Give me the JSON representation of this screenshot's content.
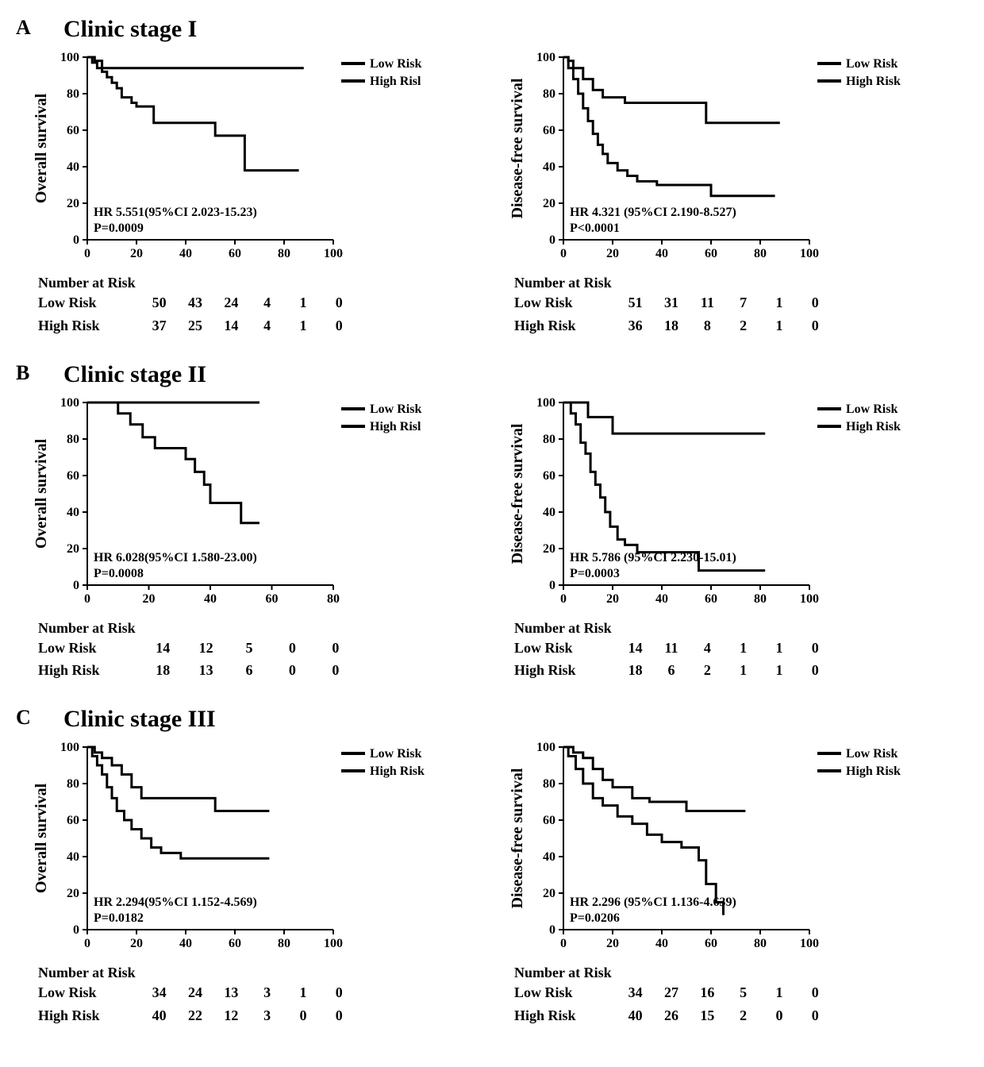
{
  "colors": {
    "line": "#000000",
    "axis": "#000000",
    "text": "#000000",
    "bg": "#ffffff"
  },
  "legend": {
    "low": "Low Risk",
    "high": "High Risk",
    "high_typo": "High Risl"
  },
  "nar_label": "Number at Risk",
  "panels": [
    {
      "letter": "A",
      "title": "Clinic stage I",
      "charts": [
        {
          "ylabel": "Overall survival",
          "xmax": 100,
          "xtick_step": 20,
          "ylim": [
            0,
            100
          ],
          "ytick_step": 20,
          "line_width": 3,
          "hr_text": "HR 5.551(95%CI 2.023-15.23)",
          "p_text": "P=0.0009",
          "legend_high": "High Risl",
          "low_curve": [
            [
              0,
              100
            ],
            [
              3,
              98
            ],
            [
              6,
              94
            ],
            [
              88,
              94
            ]
          ],
          "high_curve": [
            [
              0,
              100
            ],
            [
              2,
              97
            ],
            [
              4,
              94
            ],
            [
              6,
              92
            ],
            [
              8,
              89
            ],
            [
              10,
              86
            ],
            [
              12,
              83
            ],
            [
              14,
              78
            ],
            [
              18,
              75
            ],
            [
              20,
              73
            ],
            [
              25,
              73
            ],
            [
              27,
              64
            ],
            [
              50,
              64
            ],
            [
              52,
              57
            ],
            [
              62,
              57
            ],
            [
              64,
              38
            ],
            [
              86,
              38
            ]
          ],
          "nar_low_label": "Low Risk",
          "nar_high_label": "High Risk",
          "nar_low": [
            50,
            43,
            24,
            4,
            1,
            0
          ],
          "nar_high": [
            37,
            25,
            14,
            4,
            1,
            0
          ]
        },
        {
          "ylabel": "Disease-free survival",
          "xmax": 100,
          "xtick_step": 20,
          "ylim": [
            0,
            100
          ],
          "ytick_step": 20,
          "line_width": 3,
          "hr_text": "HR 4.321 (95%CI 2.190-8.527)",
          "p_text": "P<0.0001",
          "legend_high": "High Risk",
          "low_curve": [
            [
              0,
              100
            ],
            [
              2,
              98
            ],
            [
              4,
              94
            ],
            [
              8,
              88
            ],
            [
              12,
              82
            ],
            [
              16,
              78
            ],
            [
              25,
              75
            ],
            [
              55,
              75
            ],
            [
              58,
              64
            ],
            [
              88,
              64
            ]
          ],
          "high_curve": [
            [
              0,
              100
            ],
            [
              2,
              94
            ],
            [
              4,
              88
            ],
            [
              6,
              80
            ],
            [
              8,
              72
            ],
            [
              10,
              65
            ],
            [
              12,
              58
            ],
            [
              14,
              52
            ],
            [
              16,
              47
            ],
            [
              18,
              42
            ],
            [
              22,
              38
            ],
            [
              26,
              35
            ],
            [
              30,
              32
            ],
            [
              38,
              30
            ],
            [
              58,
              30
            ],
            [
              60,
              24
            ],
            [
              86,
              24
            ]
          ],
          "nar_low_label": "Low Risk",
          "nar_high_label": "High Risk",
          "nar_low": [
            51,
            31,
            11,
            7,
            1,
            0
          ],
          "nar_high": [
            36,
            18,
            8,
            2,
            1,
            0
          ]
        }
      ]
    },
    {
      "letter": "B",
      "title": "Clinic stage II",
      "charts": [
        {
          "ylabel": "Overall survival",
          "xmax": 80,
          "xtick_step": 20,
          "ylim": [
            0,
            100
          ],
          "ytick_step": 20,
          "line_width": 3,
          "hr_text": "HR 6.028(95%CI 1.580-23.00)",
          "p_text": "P=0.0008",
          "legend_high": "High Risl",
          "low_curve": [
            [
              0,
              100
            ],
            [
              56,
              100
            ]
          ],
          "high_curve": [
            [
              0,
              100
            ],
            [
              8,
              100
            ],
            [
              10,
              94
            ],
            [
              14,
              88
            ],
            [
              18,
              81
            ],
            [
              22,
              75
            ],
            [
              30,
              75
            ],
            [
              32,
              69
            ],
            [
              35,
              62
            ],
            [
              38,
              55
            ],
            [
              40,
              45
            ],
            [
              48,
              45
            ],
            [
              50,
              34
            ],
            [
              56,
              34
            ]
          ],
          "nar_low_label": "Low Risk",
          "nar_high_label": "High Risk",
          "nar_low": [
            14,
            12,
            5,
            0,
            0
          ],
          "nar_high": [
            18,
            13,
            6,
            0,
            0
          ]
        },
        {
          "ylabel": "Disease-free survival",
          "xmax": 100,
          "xtick_step": 20,
          "ylim": [
            0,
            100
          ],
          "ytick_step": 20,
          "line_width": 3,
          "hr_text": "HR 5.786 (95%CI 2.230-15.01)",
          "p_text": "P=0.0003",
          "legend_high": "High Risk",
          "low_curve": [
            [
              0,
              100
            ],
            [
              8,
              100
            ],
            [
              10,
              92
            ],
            [
              18,
              92
            ],
            [
              20,
              83
            ],
            [
              82,
              83
            ]
          ],
          "high_curve": [
            [
              0,
              100
            ],
            [
              3,
              94
            ],
            [
              5,
              88
            ],
            [
              7,
              78
            ],
            [
              9,
              72
            ],
            [
              11,
              62
            ],
            [
              13,
              55
            ],
            [
              15,
              48
            ],
            [
              17,
              40
            ],
            [
              19,
              32
            ],
            [
              22,
              25
            ],
            [
              25,
              22
            ],
            [
              30,
              18
            ],
            [
              52,
              18
            ],
            [
              55,
              8
            ],
            [
              82,
              8
            ]
          ],
          "nar_low_label": "Low Risk",
          "nar_high_label": "High Risk",
          "nar_low": [
            14,
            11,
            4,
            1,
            1,
            0
          ],
          "nar_high": [
            18,
            6,
            2,
            1,
            1,
            0
          ]
        }
      ]
    },
    {
      "letter": "C",
      "title": "Clinic stage III",
      "charts": [
        {
          "ylabel": "Overall survival",
          "xmax": 100,
          "xtick_step": 20,
          "ylim": [
            0,
            100
          ],
          "ytick_step": 20,
          "line_width": 3,
          "hr_text": "HR 2.294(95%CI 1.152-4.569)",
          "p_text": "P=0.0182",
          "legend_high": "High Risk",
          "low_curve": [
            [
              0,
              100
            ],
            [
              3,
              97
            ],
            [
              6,
              94
            ],
            [
              10,
              90
            ],
            [
              14,
              85
            ],
            [
              18,
              78
            ],
            [
              22,
              72
            ],
            [
              50,
              72
            ],
            [
              52,
              65
            ],
            [
              74,
              65
            ]
          ],
          "high_curve": [
            [
              0,
              100
            ],
            [
              2,
              95
            ],
            [
              4,
              90
            ],
            [
              6,
              85
            ],
            [
              8,
              78
            ],
            [
              10,
              72
            ],
            [
              12,
              65
            ],
            [
              15,
              60
            ],
            [
              18,
              55
            ],
            [
              22,
              50
            ],
            [
              26,
              45
            ],
            [
              30,
              42
            ],
            [
              38,
              39
            ],
            [
              74,
              39
            ]
          ],
          "nar_low_label": "Low Risk",
          "nar_high_label": "High Risk",
          "nar_low": [
            34,
            24,
            13,
            3,
            1,
            0
          ],
          "nar_high": [
            40,
            22,
            12,
            3,
            0,
            0
          ]
        },
        {
          "ylabel": "Disease-free survival",
          "xmax": 100,
          "xtick_step": 20,
          "ylim": [
            0,
            100
          ],
          "ytick_step": 20,
          "line_width": 3,
          "hr_text": "HR 2.296 (95%CI 1.136-4.639)",
          "p_text": "P=0.0206",
          "legend_high": "High Risk",
          "low_curve": [
            [
              0,
              100
            ],
            [
              4,
              97
            ],
            [
              8,
              94
            ],
            [
              12,
              88
            ],
            [
              16,
              82
            ],
            [
              20,
              78
            ],
            [
              28,
              72
            ],
            [
              35,
              70
            ],
            [
              48,
              70
            ],
            [
              50,
              65
            ],
            [
              74,
              65
            ]
          ],
          "high_curve": [
            [
              0,
              100
            ],
            [
              2,
              95
            ],
            [
              5,
              88
            ],
            [
              8,
              80
            ],
            [
              12,
              72
            ],
            [
              16,
              68
            ],
            [
              22,
              62
            ],
            [
              28,
              58
            ],
            [
              34,
              52
            ],
            [
              40,
              48
            ],
            [
              48,
              45
            ],
            [
              55,
              38
            ],
            [
              58,
              25
            ],
            [
              62,
              15
            ],
            [
              65,
              8
            ]
          ],
          "nar_low_label": "Low Risk",
          "nar_high_label": "High Risk",
          "nar_low": [
            34,
            27,
            16,
            5,
            1,
            0
          ],
          "nar_high": [
            40,
            26,
            15,
            2,
            0,
            0
          ]
        }
      ]
    }
  ]
}
